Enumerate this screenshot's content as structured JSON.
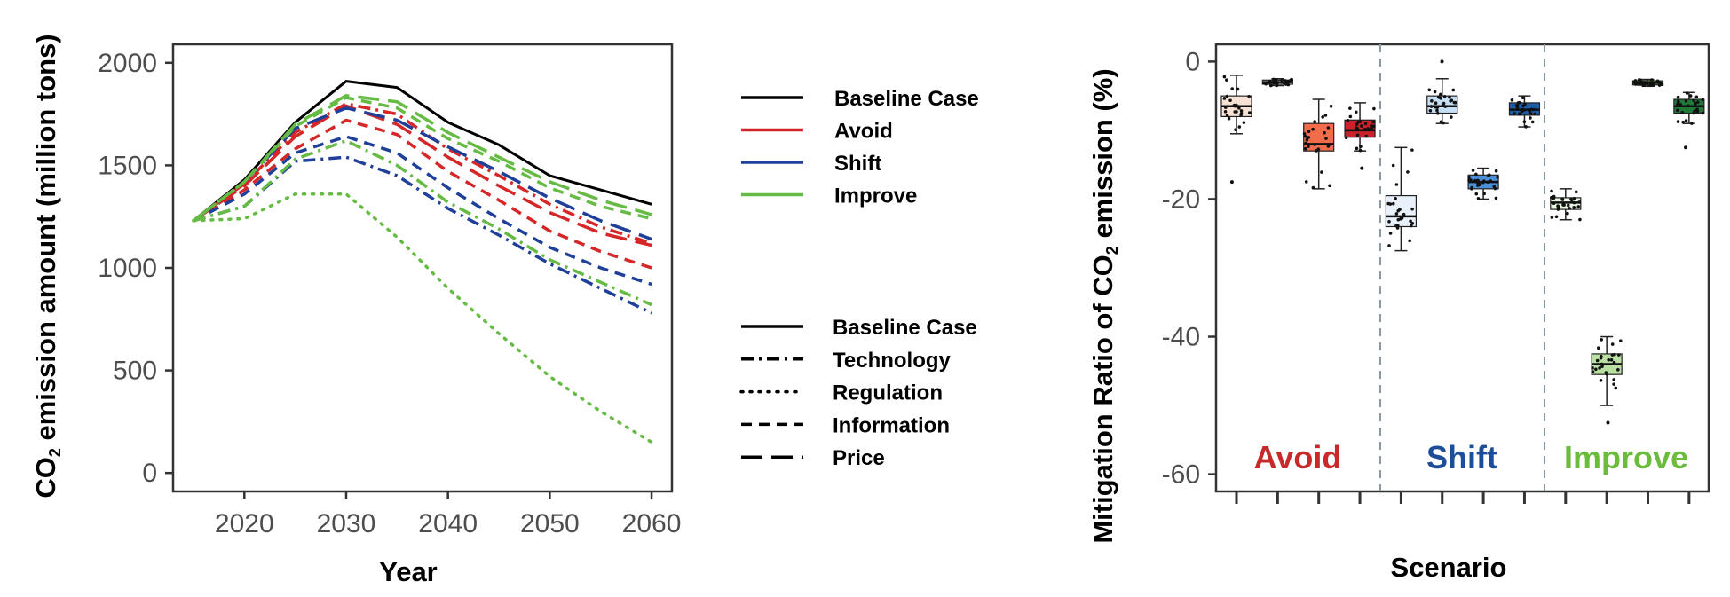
{
  "chart_data": [
    {
      "type": "line",
      "xlabel": "Year",
      "ylabel_main": "CO",
      "ylabel_sub": "2",
      "ylabel_rest": " emission amount (million tons)",
      "xlim": [
        2013,
        2062
      ],
      "ylim": [
        -90,
        2090
      ],
      "x_ticks": [
        2020,
        2030,
        2040,
        2050,
        2060
      ],
      "y_ticks": [
        0,
        500,
        1000,
        1500,
        2000
      ],
      "grid": false,
      "x": [
        2015,
        2020,
        2025,
        2030,
        2035,
        2040,
        2045,
        2050,
        2055,
        2060
      ],
      "colors": {
        "Baseline Case": "#000000",
        "Avoid": "#d62728",
        "Shift": "#1f3f99",
        "Improve": "#66bb44"
      },
      "legend_color": {
        "title": "",
        "entries": [
          {
            "name": "Baseline Case",
            "color": "#000000"
          },
          {
            "name": "Avoid",
            "color": "#d62728"
          },
          {
            "name": "Shift",
            "color": "#1f3f99"
          },
          {
            "name": "Improve",
            "color": "#66bb44"
          }
        ]
      },
      "legend_style": {
        "entries": [
          {
            "name": "Baseline Case",
            "style": "solid"
          },
          {
            "name": "Technology",
            "style": "dashdot"
          },
          {
            "name": "Regulation",
            "style": "dotted"
          },
          {
            "name": "Information",
            "style": "dashed"
          },
          {
            "name": "Price",
            "style": "longdash"
          }
        ]
      },
      "series": [
        {
          "name": "Baseline Case",
          "group": "Baseline Case",
          "style": "solid",
          "values": [
            1230,
            1430,
            1710,
            1910,
            1880,
            1710,
            1600,
            1450,
            1380,
            1310
          ]
        },
        {
          "name": "Avoid Technology",
          "group": "Avoid",
          "style": "dashdot",
          "values": [
            1230,
            1410,
            1660,
            1800,
            1750,
            1580,
            1450,
            1310,
            1200,
            1120
          ]
        },
        {
          "name": "Avoid Information",
          "group": "Avoid",
          "style": "dashed",
          "values": [
            1230,
            1380,
            1580,
            1720,
            1650,
            1470,
            1330,
            1180,
            1080,
            1000
          ]
        },
        {
          "name": "Avoid Price",
          "group": "Avoid",
          "style": "longdash",
          "values": [
            1230,
            1400,
            1640,
            1790,
            1700,
            1540,
            1400,
            1270,
            1170,
            1110
          ]
        },
        {
          "name": "Shift Technology",
          "group": "Shift",
          "style": "dashdot",
          "values": [
            1230,
            1300,
            1520,
            1540,
            1450,
            1290,
            1160,
            1020,
            900,
            780
          ]
        },
        {
          "name": "Shift Information",
          "group": "Shift",
          "style": "dashed",
          "values": [
            1230,
            1360,
            1560,
            1640,
            1560,
            1390,
            1240,
            1100,
            1000,
            920
          ]
        },
        {
          "name": "Shift Price",
          "group": "Shift",
          "style": "longdash",
          "values": [
            1230,
            1420,
            1680,
            1780,
            1720,
            1590,
            1470,
            1340,
            1230,
            1140
          ]
        },
        {
          "name": "Improve Technology",
          "group": "Improve",
          "style": "dashdot",
          "values": [
            1230,
            1300,
            1530,
            1620,
            1500,
            1320,
            1190,
            1040,
            930,
            820
          ]
        },
        {
          "name": "Improve Regulation",
          "group": "Improve",
          "style": "dotted",
          "values": [
            1230,
            1240,
            1360,
            1360,
            1150,
            900,
            680,
            470,
            300,
            150
          ]
        },
        {
          "name": "Improve Information",
          "group": "Improve",
          "style": "dashed",
          "values": [
            1230,
            1420,
            1690,
            1830,
            1780,
            1630,
            1520,
            1390,
            1300,
            1240
          ]
        },
        {
          "name": "Improve Price",
          "group": "Improve",
          "style": "longdash",
          "values": [
            1230,
            1420,
            1700,
            1840,
            1810,
            1660,
            1540,
            1420,
            1330,
            1260
          ]
        }
      ]
    },
    {
      "type": "box",
      "xlabel": "Scenario",
      "ylabel_main": "Mitigation Ratio of  CO",
      "ylabel_sub": "2",
      "ylabel_rest": " emission (%)",
      "ylim": [
        -62.5,
        2.5
      ],
      "y_ticks": [
        0,
        -20,
        -40,
        -60
      ],
      "grid": false,
      "group_labels": [
        {
          "text": "Avoid",
          "color": "#c62a2a"
        },
        {
          "text": "Shift",
          "color": "#1f4e99"
        },
        {
          "text": "Improve",
          "color": "#6bbb3c"
        }
      ],
      "boxes": [
        {
          "group": "Avoid",
          "fill": "#f8e2d4",
          "q1": -8,
          "median": -6.5,
          "q3": -5,
          "whisker_low": -10.5,
          "whisker_high": -2,
          "outliers": [
            -17.5
          ]
        },
        {
          "group": "Avoid",
          "fill": "#fbe0d0",
          "q1": -3.3,
          "median": -3,
          "q3": -2.7,
          "whisker_low": -3.5,
          "whisker_high": -2.5,
          "outliers": []
        },
        {
          "group": "Avoid",
          "fill": "#f26b4a",
          "q1": -13,
          "median": -12,
          "q3": -9,
          "whisker_low": -18.5,
          "whisker_high": -5.5,
          "outliers": []
        },
        {
          "group": "Avoid",
          "fill": "#c9222b",
          "q1": -11,
          "median": -10,
          "q3": -8.5,
          "whisker_low": -13,
          "whisker_high": -6,
          "outliers": [
            -15.5
          ]
        },
        {
          "group": "Shift",
          "fill": "#e8f1fb",
          "q1": -24,
          "median": -22.5,
          "q3": -19.5,
          "whisker_low": -27.5,
          "whisker_high": -12.5,
          "outliers": []
        },
        {
          "group": "Shift",
          "fill": "#c6dff5",
          "q1": -7.5,
          "median": -6.5,
          "q3": -5,
          "whisker_low": -9,
          "whisker_high": -2.5,
          "outliers": [
            0
          ]
        },
        {
          "group": "Shift",
          "fill": "#4a90d9",
          "q1": -18.5,
          "median": -17.5,
          "q3": -16.5,
          "whisker_low": -20,
          "whisker_high": -15.5,
          "outliers": []
        },
        {
          "group": "Shift",
          "fill": "#1d5da8",
          "q1": -7.8,
          "median": -7,
          "q3": -6,
          "whisker_low": -9.5,
          "whisker_high": -5,
          "outliers": []
        },
        {
          "group": "Improve",
          "fill": "#eaf6e2",
          "q1": -21.5,
          "median": -20.5,
          "q3": -19.8,
          "whisker_low": -23,
          "whisker_high": -18.5,
          "outliers": []
        },
        {
          "group": "Improve",
          "fill": "#b9e0a2",
          "q1": -45.5,
          "median": -44,
          "q3": -42.5,
          "whisker_low": -50,
          "whisker_high": -40,
          "outliers": [
            -52.5
          ]
        },
        {
          "group": "Improve",
          "fill": "#5cb847",
          "q1": -3.4,
          "median": -3.1,
          "q3": -2.8,
          "whisker_low": -3.6,
          "whisker_high": -2.6,
          "outliers": []
        },
        {
          "group": "Improve",
          "fill": "#1f7a3a",
          "q1": -7.5,
          "median": -6.5,
          "q3": -5.5,
          "whisker_low": -9,
          "whisker_high": -4.5,
          "outliers": [
            -12.5
          ]
        }
      ]
    }
  ]
}
